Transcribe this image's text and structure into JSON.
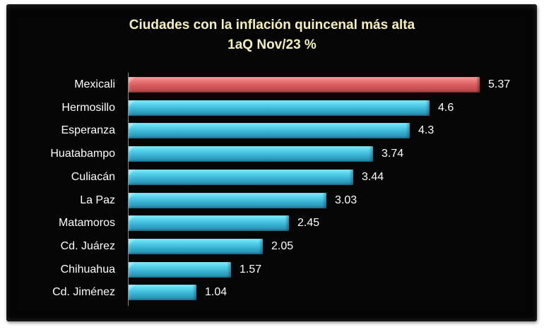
{
  "chart_data": {
    "type": "bar",
    "orientation": "horizontal",
    "title": "Ciudades con la inflación quincenal más alta",
    "subtitle": "1aQ Nov/23 %",
    "xlabel": "",
    "ylabel": "",
    "grid": false,
    "legend": null,
    "categories": [
      "Mexicali",
      "Hermosillo",
      "Esperanza",
      "Huatabampo",
      "Culiacán",
      "La Paz",
      "Matamoros",
      "Cd. Juárez",
      "Chihuahua",
      "Cd. Jiménez"
    ],
    "values": [
      5.37,
      4.6,
      4.3,
      3.74,
      3.44,
      3.03,
      2.45,
      2.05,
      1.57,
      1.04
    ],
    "value_labels": [
      "5.37",
      "4.6",
      "4.3",
      "3.74",
      "3.44",
      "3.03",
      "2.45",
      "2.05",
      "1.57",
      "1.04"
    ],
    "highlight_index": 0,
    "colors": {
      "highlight": "#d85b5d",
      "default": "#3cb6d6",
      "background": "#050505",
      "title": "#f5f0b8",
      "text": "#ffffff"
    }
  }
}
